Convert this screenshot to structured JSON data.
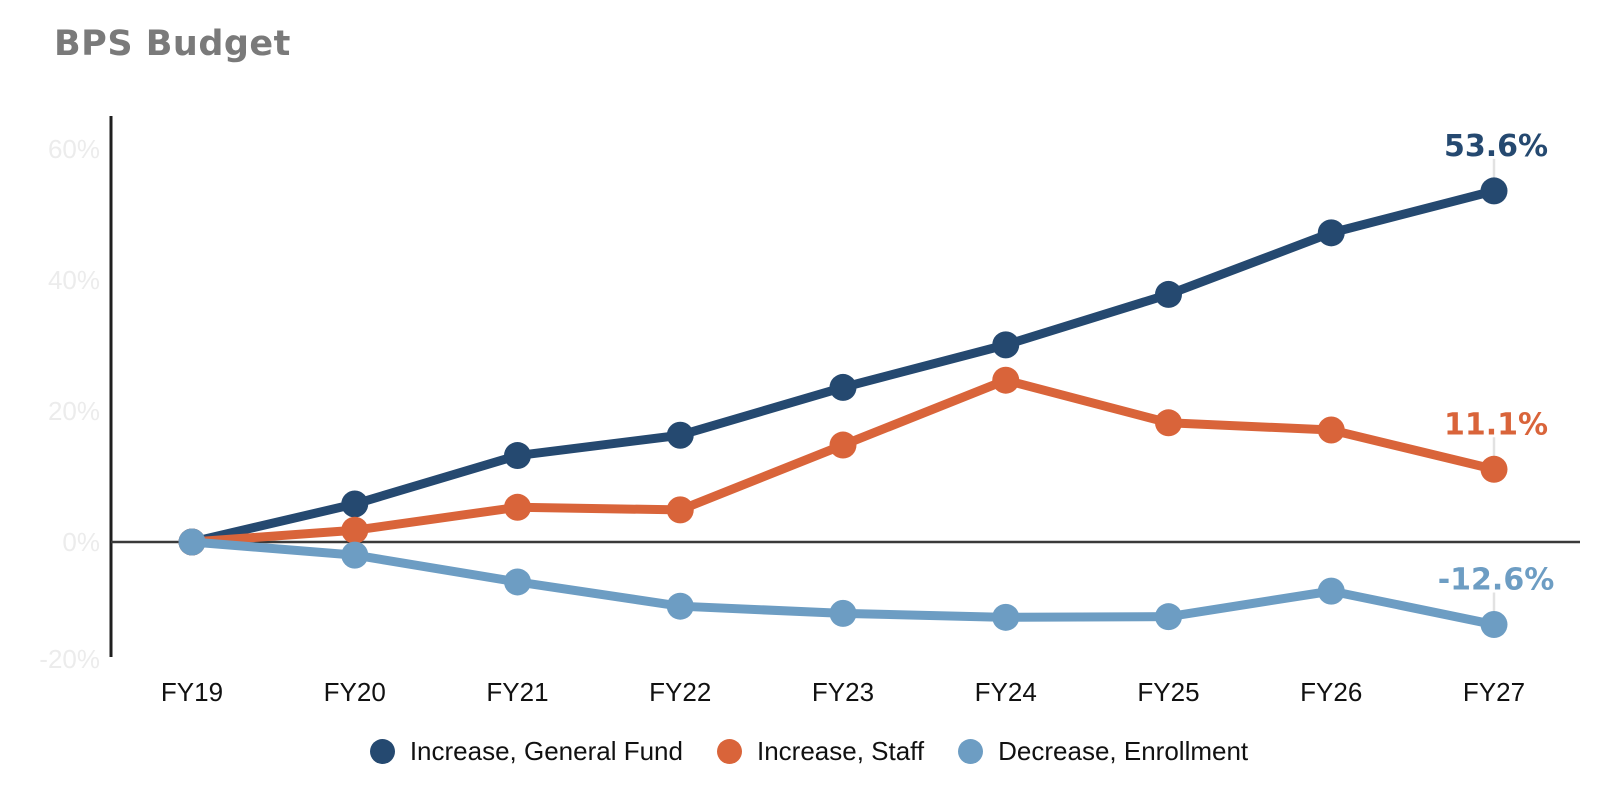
{
  "page": {
    "background_color": "#ffffff",
    "title_color": "#7a7a7a",
    "axis_line_color": "#1f1f1f",
    "zero_line_color": "#3a3a3a",
    "y_tick_color": "#ececec",
    "x_tick_color": "#111111",
    "end_label_connector_color": "#e2e2e2"
  },
  "chart_data": {
    "type": "line",
    "title": "BPS Budget",
    "xlabel": "",
    "ylabel": "",
    "categories": [
      "FY19",
      "FY20",
      "FY21",
      "FY22",
      "FY23",
      "FY24",
      "FY25",
      "FY26",
      "FY27"
    ],
    "series": [
      {
        "name": "Increase, General Fund",
        "color": "#254970",
        "values": [
          0,
          5.8,
          13.2,
          16.3,
          23.6,
          30.1,
          37.8,
          47.2,
          53.6
        ],
        "end_label": "53.6%"
      },
      {
        "name": "Increase, Staff",
        "color": "#d9643a",
        "values": [
          0,
          1.8,
          5.3,
          4.9,
          14.8,
          24.7,
          18.2,
          17.1,
          11.1
        ],
        "end_label": "11.1%"
      },
      {
        "name": "Decrease, Enrollment",
        "color": "#6d9dc3",
        "values": [
          0,
          -2.0,
          -6.1,
          -9.8,
          -10.9,
          -11.5,
          -11.4,
          -7.5,
          -12.6
        ],
        "end_label": "-12.6%"
      }
    ],
    "y_axis": {
      "tick_labels": [
        "60%",
        "40%",
        "20%",
        "0%",
        "-20%"
      ],
      "tick_values": [
        60,
        40,
        20,
        0,
        -20
      ],
      "ylim": [
        -20,
        60
      ],
      "grid": false
    },
    "legend": {
      "position": "bottom",
      "entries": [
        "Increase, General Fund",
        "Increase, Staff",
        "Decrease, Enrollment"
      ]
    }
  }
}
